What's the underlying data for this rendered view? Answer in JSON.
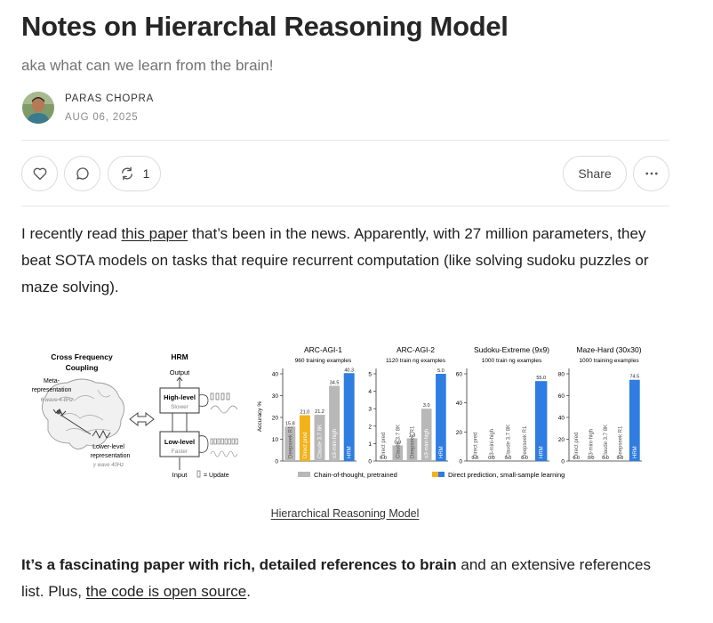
{
  "post": {
    "title": "Notes on Hierarchal Reasoning Model",
    "subtitle": "aka what can we learn from the brain!",
    "author": "PARAS CHOPRA",
    "date": "AUG 06, 2025"
  },
  "actions": {
    "like_icon": "heart-icon",
    "comment_icon": "comment-icon",
    "restack_icon": "restack-icon",
    "restack_count": "1",
    "share_label": "Share",
    "more_icon": "more-icon"
  },
  "paragraph1": {
    "before": "I recently read ",
    "link": "this paper",
    "after": " that’s been in the news. Apparently, with 27 million parameters, they beat SOTA models on tasks that require recurrent computation (like solving sudoku puzzles or maze solving)."
  },
  "figure": {
    "caption": "Hierarchical Reasoning Model",
    "diagram": {
      "cfc_title_line1": "Cross Frequency",
      "cfc_title_line2": "Coupling",
      "meta_label_line1": "Meta-",
      "meta_label_line2": "representation",
      "meta_freq": "θ wave 4-8Hz",
      "lower_label_line1": "Lower-level",
      "lower_label_line2": "representation",
      "lower_freq": "γ wave 40Hz",
      "hrm_title": "HRM",
      "output_label": "Output",
      "input_label": "Input",
      "high_level": "High-level",
      "slower": "Slower",
      "low_level": "Low-level",
      "faster": "Faster",
      "update_label": "= Update"
    },
    "legend": {
      "cot": "Chain-of-thought, pretrained",
      "direct": "Direct prediction, small-sample learning"
    },
    "colors": {
      "grey": "#b8b8b8",
      "orange": "#f2b21b",
      "blue": "#2f7de1"
    }
  },
  "chart_data": [
    {
      "type": "bar",
      "title": "ARC-AGI-1",
      "subtitle": "960 training examples",
      "ylabel": "Accuracy %",
      "ylim": [
        0,
        40
      ],
      "yticks": [
        0,
        10,
        20,
        30,
        40
      ],
      "categories": [
        "Deepseek R1",
        "Direct pred",
        "Claude 3.7 8K",
        "o3-mini-high",
        "HRM"
      ],
      "values": [
        15.8,
        21.0,
        21.2,
        34.5,
        40.3
      ],
      "value_labels": [
        "15.8",
        "21.0",
        "21.2",
        "34.5",
        "40.3"
      ],
      "colors": [
        "grey",
        "orange",
        "grey",
        "grey",
        "blue"
      ]
    },
    {
      "type": "bar",
      "title": "ARC-AGI-2",
      "subtitle": "1120 train ng examples",
      "ylim": [
        0,
        5
      ],
      "yticks": [
        0,
        1,
        2,
        3,
        4,
        5
      ],
      "categories": [
        "Direct pred",
        "Claude 3.7 8K",
        "Deepseek R1",
        "o3-mini-high",
        "HRM"
      ],
      "values": [
        0.0,
        0.9,
        1.3,
        3.0,
        5.0
      ],
      "value_labels": [
        "0.0",
        "0.9",
        "1.3",
        "3.0",
        "5.0"
      ],
      "colors": [
        "grey",
        "grey",
        "grey",
        "grey",
        "blue"
      ]
    },
    {
      "type": "bar",
      "title": "Sudoku-Extreme (9x9)",
      "subtitle": "1000 train ng examples",
      "ylim": [
        0,
        60
      ],
      "yticks": [
        0,
        20,
        40,
        60
      ],
      "categories": [
        "Direct pred",
        "o3-mini-high",
        "Claude 3.7 8K",
        "Deepseek R1",
        "HRM"
      ],
      "values": [
        0.0,
        0.0,
        0.0,
        0.0,
        55.0
      ],
      "value_labels": [
        "0.0",
        "0.0",
        "0.0",
        "0.0",
        "55.0"
      ],
      "colors": [
        "grey",
        "grey",
        "grey",
        "grey",
        "blue"
      ]
    },
    {
      "type": "bar",
      "title": "Maze-Hard (30x30)",
      "subtitle": "1000 training examples",
      "ylim": [
        0,
        80
      ],
      "yticks": [
        0,
        20,
        40,
        60,
        80
      ],
      "categories": [
        "Direct pred",
        "o3-mini-high",
        "Claude 3.7 8K",
        "Deepseek R1",
        "HRM"
      ],
      "values": [
        0.0,
        0.0,
        0.0,
        0.0,
        74.5
      ],
      "value_labels": [
        "0.0",
        "0.0",
        "0.0",
        "0.0",
        "74.5"
      ],
      "colors": [
        "grey",
        "grey",
        "grey",
        "grey",
        "blue"
      ]
    }
  ],
  "paragraph2": {
    "bold": "It’s a fascinating paper with rich, detailed references to brain",
    "middle": " and an extensive references list. Plus, ",
    "link": "the code is open source",
    "end": "."
  }
}
